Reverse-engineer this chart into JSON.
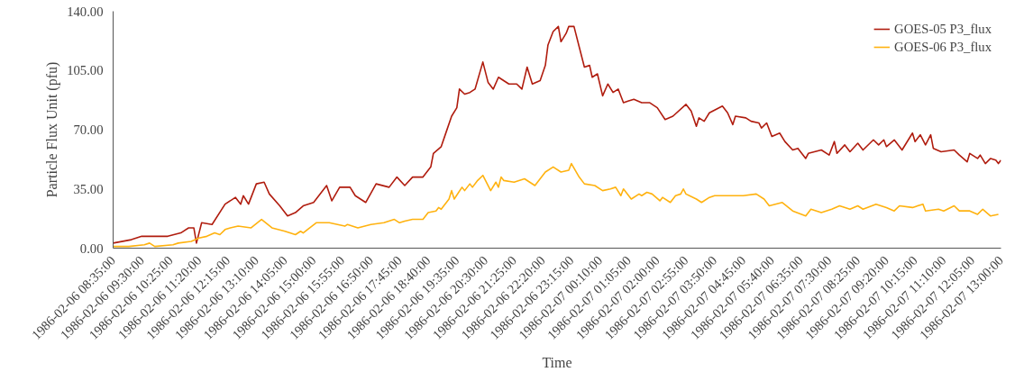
{
  "chart_data": {
    "type": "line",
    "xlabel": "Time",
    "ylabel": "Particle Flux Unit (pfu)",
    "legend": "top right",
    "grid": false,
    "line_style": "solid",
    "marker": "none",
    "xlim": [
      "1986-02-06T08:35",
      "1986-02-07T13:00"
    ],
    "xticks": [
      {
        "value": "1986-02-06T08:35",
        "label": "1986-02-06 08:35:00"
      },
      {
        "value": "1986-02-06T09:30",
        "label": "1986-02-06 09:30:00"
      },
      {
        "value": "1986-02-06T10:25",
        "label": "1986-02-06 10:25:00"
      },
      {
        "value": "1986-02-06T11:20",
        "label": "1986-02-06 11:20:00"
      },
      {
        "value": "1986-02-06T12:15",
        "label": "1986-02-06 12:15:00"
      },
      {
        "value": "1986-02-06T13:10",
        "label": "1986-02-06 13:10:00"
      },
      {
        "value": "1986-02-06T14:05",
        "label": "1986-02-06 14:05:00"
      },
      {
        "value": "1986-02-06T15:00",
        "label": "1986-02-06 15:00:00"
      },
      {
        "value": "1986-02-06T15:55",
        "label": "1986-02-06 15:55:00"
      },
      {
        "value": "1986-02-06T16:50",
        "label": "1986-02-06 16:50:00"
      },
      {
        "value": "1986-02-06T17:45",
        "label": "1986-02-06 17:45:00"
      },
      {
        "value": "1986-02-06T18:40",
        "label": "1986-02-06 18:40:00"
      },
      {
        "value": "1986-02-06T19:35",
        "label": "1986-02-06 19:35:00"
      },
      {
        "value": "1986-02-06T20:30",
        "label": "1986-02-06 20:30:00"
      },
      {
        "value": "1986-02-06T21:25",
        "label": "1986-02-06 21:25:00"
      },
      {
        "value": "1986-02-06T22:20",
        "label": "1986-02-06 22:20:00"
      },
      {
        "value": "1986-02-06T23:15",
        "label": "1986-02-06 23:15:00"
      },
      {
        "value": "1986-02-07T00:10",
        "label": "1986-02-07 00:10:00"
      },
      {
        "value": "1986-02-07T01:05",
        "label": "1986-02-07 01:05:00"
      },
      {
        "value": "1986-02-07T02:00",
        "label": "1986-02-07 02:00:00"
      },
      {
        "value": "1986-02-07T02:55",
        "label": "1986-02-07 02:55:00"
      },
      {
        "value": "1986-02-07T03:50",
        "label": "1986-02-07 03:50:00"
      },
      {
        "value": "1986-02-07T04:45",
        "label": "1986-02-07 04:45:00"
      },
      {
        "value": "1986-02-07T05:40",
        "label": "1986-02-07 05:40:00"
      },
      {
        "value": "1986-02-07T06:35",
        "label": "1986-02-07 06:35:00"
      },
      {
        "value": "1986-02-07T07:30",
        "label": "1986-02-07 07:30:00"
      },
      {
        "value": "1986-02-07T08:25",
        "label": "1986-02-07 08:25:00"
      },
      {
        "value": "1986-02-07T09:20",
        "label": "1986-02-07 09:20:00"
      },
      {
        "value": "1986-02-07T10:15",
        "label": "1986-02-07 10:15:00"
      },
      {
        "value": "1986-02-07T11:10",
        "label": "1986-02-07 11:10:00"
      },
      {
        "value": "1986-02-07T12:05",
        "label": "1986-02-07 12:05:00"
      },
      {
        "value": "1986-02-07T13:00",
        "label": "1986-02-07 13:00:00"
      }
    ],
    "ylim": [
      0,
      140
    ],
    "yticks": [
      {
        "value": 0,
        "label": "0.00"
      },
      {
        "value": 35,
        "label": "35.00"
      },
      {
        "value": 70,
        "label": "70.00"
      },
      {
        "value": 105,
        "label": "105.00"
      },
      {
        "value": 140,
        "label": "140.00"
      }
    ],
    "series": [
      {
        "name": "GOES-05 P3_flux",
        "color": "#b01c0e",
        "x": [
          "1986-02-06T08:35",
          "1986-02-06T09:10",
          "1986-02-06T09:30",
          "1986-02-06T10:20",
          "1986-02-06T10:45",
          "1986-02-06T11:00",
          "1986-02-06T11:10",
          "1986-02-06T11:15",
          "1986-02-06T11:25",
          "1986-02-06T11:45",
          "1986-02-06T12:10",
          "1986-02-06T12:30",
          "1986-02-06T12:40",
          "1986-02-06T12:45",
          "1986-02-06T12:55",
          "1986-02-06T13:10",
          "1986-02-06T13:25",
          "1986-02-06T13:35",
          "1986-02-06T13:55",
          "1986-02-06T14:10",
          "1986-02-06T14:25",
          "1986-02-06T14:40",
          "1986-02-06T15:00",
          "1986-02-06T15:25",
          "1986-02-06T15:35",
          "1986-02-06T15:50",
          "1986-02-06T16:10",
          "1986-02-06T16:20",
          "1986-02-06T16:40",
          "1986-02-06T17:00",
          "1986-02-06T17:25",
          "1986-02-06T17:40",
          "1986-02-06T17:55",
          "1986-02-06T18:10",
          "1986-02-06T18:30",
          "1986-02-06T18:45",
          "1986-02-06T18:50",
          "1986-02-06T19:05",
          "1986-02-06T19:15",
          "1986-02-06T19:25",
          "1986-02-06T19:35",
          "1986-02-06T19:40",
          "1986-02-06T19:50",
          "1986-02-06T20:00",
          "1986-02-06T20:10",
          "1986-02-06T20:25",
          "1986-02-06T20:35",
          "1986-02-06T20:45",
          "1986-02-06T20:55",
          "1986-02-06T21:15",
          "1986-02-06T21:30",
          "1986-02-06T21:40",
          "1986-02-06T21:50",
          "1986-02-06T22:00",
          "1986-02-06T22:15",
          "1986-02-06T22:25",
          "1986-02-06T22:30",
          "1986-02-06T22:40",
          "1986-02-06T22:50",
          "1986-02-06T22:55",
          "1986-02-06T23:05",
          "1986-02-06T23:10",
          "1986-02-06T23:20",
          "1986-02-06T23:30",
          "1986-02-06T23:40",
          "1986-02-06T23:50",
          "1986-02-06T23:55",
          "1986-02-07T00:05",
          "1986-02-07T00:15",
          "1986-02-07T00:25",
          "1986-02-07T00:35",
          "1986-02-07T00:45",
          "1986-02-07T00:55",
          "1986-02-07T01:05",
          "1986-02-07T01:15",
          "1986-02-07T01:30",
          "1986-02-07T01:45",
          "1986-02-07T02:00",
          "1986-02-07T02:15",
          "1986-02-07T02:30",
          "1986-02-07T02:55",
          "1986-02-07T03:05",
          "1986-02-07T03:15",
          "1986-02-07T03:20",
          "1986-02-07T03:30",
          "1986-02-07T03:40",
          "1986-02-07T04:05",
          "1986-02-07T04:15",
          "1986-02-07T04:25",
          "1986-02-07T04:30",
          "1986-02-07T04:50",
          "1986-02-07T05:00",
          "1986-02-07T05:15",
          "1986-02-07T05:20",
          "1986-02-07T05:30",
          "1986-02-07T05:40",
          "1986-02-07T05:55",
          "1986-02-07T06:05",
          "1986-02-07T06:20",
          "1986-02-07T06:30",
          "1986-02-07T06:45",
          "1986-02-07T06:50",
          "1986-02-07T07:15",
          "1986-02-07T07:30",
          "1986-02-07T07:40",
          "1986-02-07T07:45",
          "1986-02-07T08:00",
          "1986-02-07T08:10",
          "1986-02-07T08:25",
          "1986-02-07T08:35",
          "1986-02-07T08:55",
          "1986-02-07T09:05",
          "1986-02-07T09:15",
          "1986-02-07T09:20",
          "1986-02-07T09:35",
          "1986-02-07T09:50",
          "1986-02-07T10:10",
          "1986-02-07T10:15",
          "1986-02-07T10:25",
          "1986-02-07T10:35",
          "1986-02-07T10:45",
          "1986-02-07T10:50",
          "1986-02-07T11:05",
          "1986-02-07T11:30",
          "1986-02-07T11:40",
          "1986-02-07T11:55",
          "1986-02-07T12:00",
          "1986-02-07T12:15",
          "1986-02-07T12:20",
          "1986-02-07T12:30",
          "1986-02-07T12:40",
          "1986-02-07T12:50",
          "1986-02-07T12:55",
          "1986-02-07T13:00"
        ],
        "values": [
          3,
          5,
          7,
          7,
          9,
          12,
          12,
          3,
          15,
          14,
          26,
          30,
          26,
          31,
          26,
          38,
          39,
          32,
          25,
          19,
          21,
          25,
          27,
          37,
          28,
          36,
          36,
          31,
          27,
          38,
          36,
          42,
          37,
          42,
          42,
          48,
          56,
          60,
          69,
          78,
          83,
          94,
          91,
          92,
          94,
          110,
          98,
          94,
          101,
          97,
          97,
          94,
          107,
          97,
          99,
          108,
          120,
          128,
          131,
          122,
          127,
          131,
          131,
          119,
          107,
          108,
          101,
          103,
          90,
          97,
          92,
          94,
          86,
          87,
          88,
          86,
          86,
          83,
          76,
          78,
          85,
          81,
          72,
          77,
          75,
          80,
          84,
          80,
          73,
          78,
          77,
          75,
          74,
          71,
          74,
          66,
          68,
          63,
          58,
          59,
          53,
          56,
          58,
          55,
          63,
          56,
          61,
          57,
          62,
          58,
          64,
          61,
          64,
          60,
          64,
          58,
          68,
          63,
          67,
          61,
          67,
          59,
          57,
          58,
          55,
          51,
          56,
          53,
          55,
          50,
          53,
          52,
          50,
          52
        ]
      },
      {
        "name": "GOES-06 P3_flux",
        "color": "#ffb20f",
        "x": [
          "1986-02-06T08:35",
          "1986-02-06T09:05",
          "1986-02-06T09:35",
          "1986-02-06T09:45",
          "1986-02-06T09:55",
          "1986-02-06T10:30",
          "1986-02-06T10:40",
          "1986-02-06T11:05",
          "1986-02-06T11:20",
          "1986-02-06T11:35",
          "1986-02-06T11:50",
          "1986-02-06T12:00",
          "1986-02-06T12:10",
          "1986-02-06T12:20",
          "1986-02-06T12:35",
          "1986-02-06T13:00",
          "1986-02-06T13:20",
          "1986-02-06T13:40",
          "1986-02-06T14:05",
          "1986-02-06T14:25",
          "1986-02-06T14:35",
          "1986-02-06T14:40",
          "1986-02-06T15:05",
          "1986-02-06T15:30",
          "1986-02-06T16:00",
          "1986-02-06T16:05",
          "1986-02-06T16:25",
          "1986-02-06T16:50",
          "1986-02-06T17:15",
          "1986-02-06T17:35",
          "1986-02-06T17:45",
          "1986-02-06T17:55",
          "1986-02-06T18:10",
          "1986-02-06T18:30",
          "1986-02-06T18:40",
          "1986-02-06T18:55",
          "1986-02-06T19:00",
          "1986-02-06T19:05",
          "1986-02-06T19:20",
          "1986-02-06T19:25",
          "1986-02-06T19:30",
          "1986-02-06T19:45",
          "1986-02-06T19:50",
          "1986-02-06T20:00",
          "1986-02-06T20:05",
          "1986-02-06T20:15",
          "1986-02-06T20:25",
          "1986-02-06T20:40",
          "1986-02-06T20:50",
          "1986-02-06T20:55",
          "1986-02-06T21:00",
          "1986-02-06T21:05",
          "1986-02-06T21:25",
          "1986-02-06T21:45",
          "1986-02-06T22:05",
          "1986-02-06T22:25",
          "1986-02-06T22:40",
          "1986-02-06T22:55",
          "1986-02-06T23:10",
          "1986-02-06T23:15",
          "1986-02-06T23:30",
          "1986-02-06T23:40",
          "1986-02-07T00:00",
          "1986-02-07T00:15",
          "1986-02-07T00:30",
          "1986-02-07T00:40",
          "1986-02-07T00:50",
          "1986-02-07T00:55",
          "1986-02-07T01:10",
          "1986-02-07T01:25",
          "1986-02-07T01:30",
          "1986-02-07T01:40",
          "1986-02-07T01:50",
          "1986-02-07T02:05",
          "1986-02-07T02:10",
          "1986-02-07T02:25",
          "1986-02-07T02:35",
          "1986-02-07T02:45",
          "1986-02-07T02:50",
          "1986-02-07T02:55",
          "1986-02-07T03:15",
          "1986-02-07T03:25",
          "1986-02-07T03:40",
          "1986-02-07T03:50",
          "1986-02-07T04:15",
          "1986-02-07T04:45",
          "1986-02-07T05:10",
          "1986-02-07T05:25",
          "1986-02-07T05:35",
          "1986-02-07T06:00",
          "1986-02-07T06:20",
          "1986-02-07T06:45",
          "1986-02-07T06:55",
          "1986-02-07T07:15",
          "1986-02-07T07:35",
          "1986-02-07T07:50",
          "1986-02-07T08:10",
          "1986-02-07T08:25",
          "1986-02-07T08:35",
          "1986-02-07T09:00",
          "1986-02-07T09:20",
          "1986-02-07T09:35",
          "1986-02-07T09:45",
          "1986-02-07T10:10",
          "1986-02-07T10:30",
          "1986-02-07T10:35",
          "1986-02-07T11:00",
          "1986-02-07T11:10",
          "1986-02-07T11:30",
          "1986-02-07T11:40",
          "1986-02-07T12:00",
          "1986-02-07T12:15",
          "1986-02-07T12:25",
          "1986-02-07T12:40",
          "1986-02-07T12:55"
        ],
        "values": [
          1,
          1,
          2,
          3,
          1,
          2,
          3,
          4,
          6,
          7,
          9,
          8,
          11,
          12,
          13,
          12,
          17,
          12,
          10,
          8,
          10,
          9,
          15,
          15,
          13,
          14,
          12,
          14,
          15,
          17,
          15,
          16,
          17,
          17,
          21,
          22,
          24,
          23,
          29,
          34,
          29,
          36,
          34,
          38,
          36,
          40,
          43,
          34,
          39,
          36,
          42,
          40,
          39,
          41,
          37,
          45,
          48,
          45,
          46,
          50,
          42,
          38,
          37,
          34,
          35,
          36,
          31,
          35,
          29,
          32,
          31,
          33,
          32,
          28,
          30,
          27,
          31,
          32,
          35,
          32,
          29,
          27,
          30,
          31,
          31,
          31,
          32,
          29,
          25,
          27,
          22,
          19,
          23,
          21,
          23,
          25,
          23,
          25,
          23,
          26,
          24,
          22,
          25,
          24,
          26,
          22,
          23,
          22,
          25,
          22,
          22,
          20,
          23,
          19,
          20
        ]
      }
    ]
  }
}
